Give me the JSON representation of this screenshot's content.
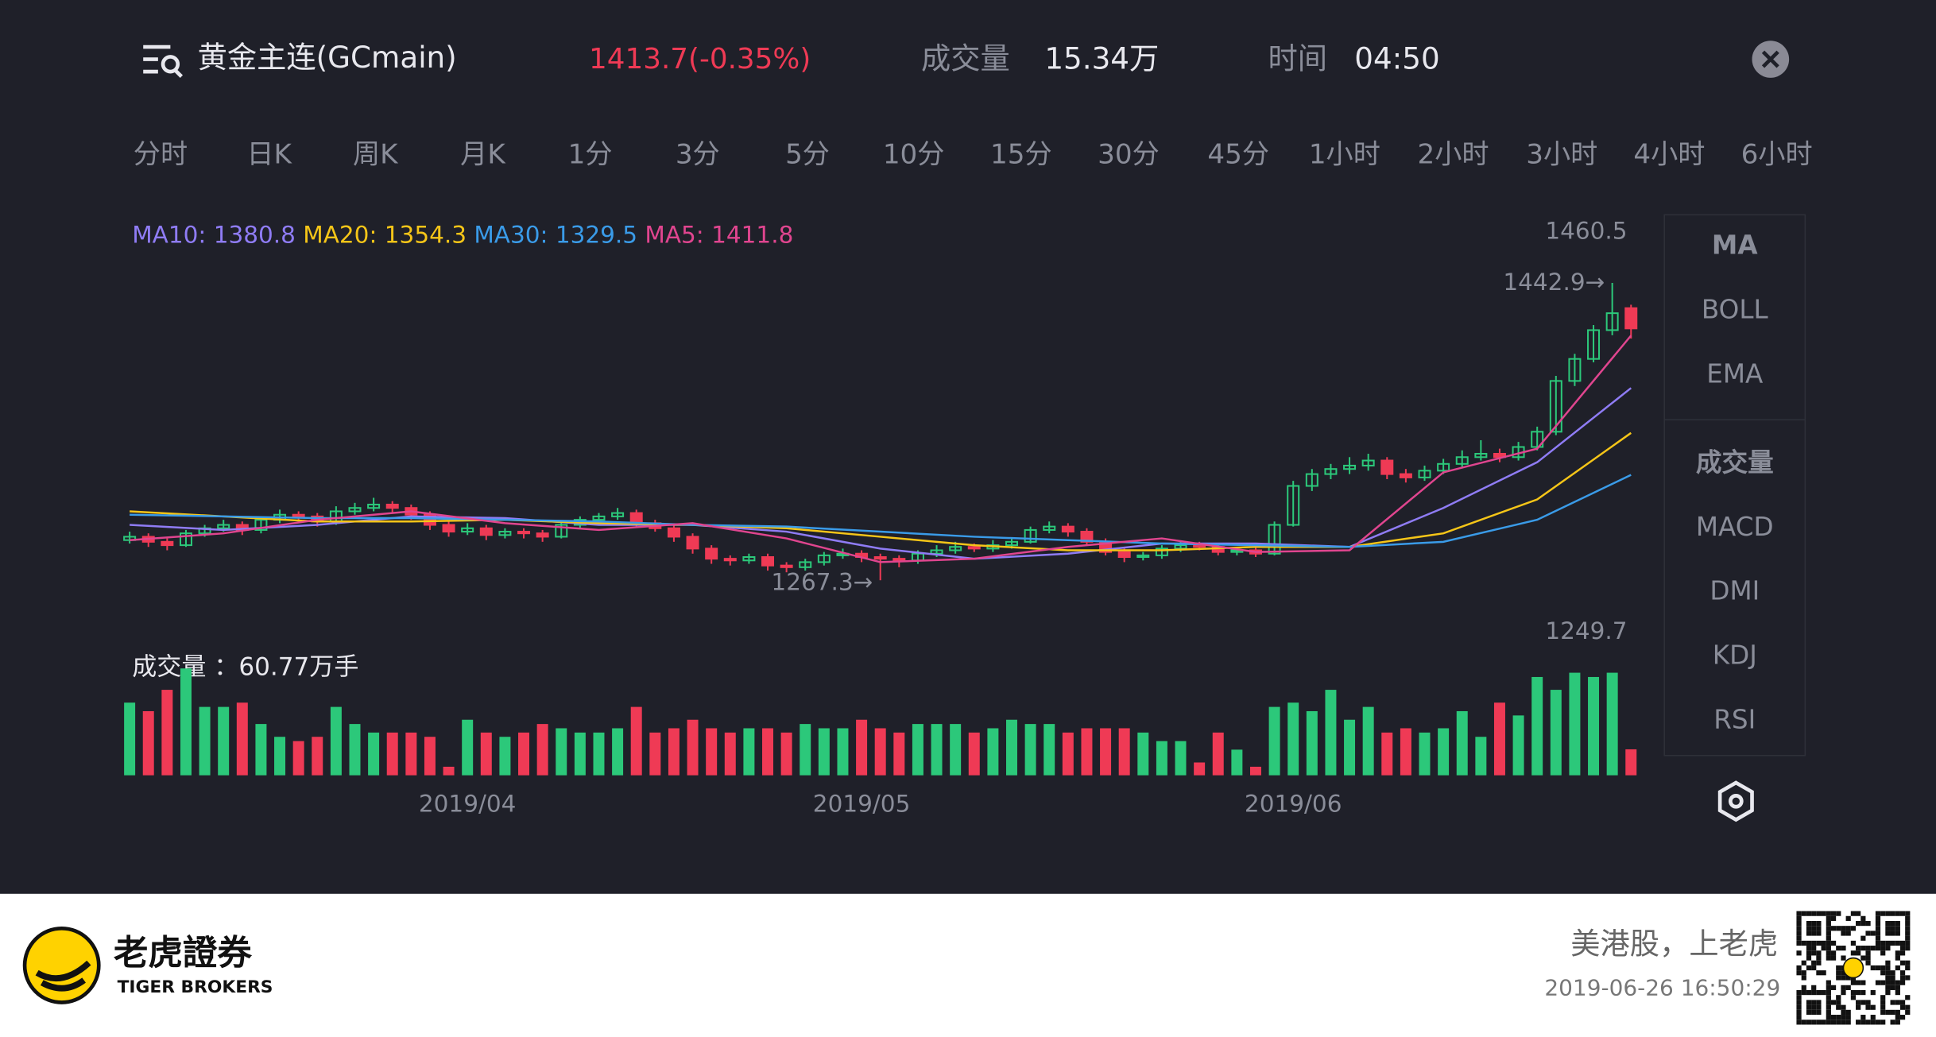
{
  "header": {
    "title": "黄金主连(GCmain)",
    "price": "1413.7(-0.35%)",
    "volume_label": "成交量",
    "volume": "15.34万",
    "time_label": "时间",
    "time": "04:50"
  },
  "tabs": {
    "items": [
      "分时",
      "日K",
      "周K",
      "月K",
      "1分",
      "3分",
      "5分",
      "10分",
      "15分",
      "30分",
      "45分",
      "1小时",
      "2小时",
      "3小时",
      "4小时",
      "6小时"
    ],
    "active": 1
  },
  "side_menu": {
    "items": [
      "MA",
      "BOLL",
      "EMA",
      "成交量",
      "MACD",
      "DMI",
      "KDJ",
      "RSI"
    ],
    "active": [
      0,
      3
    ]
  },
  "chart_data": {
    "type": "candlestick",
    "ylim": [
      1241.8,
      1460.5
    ],
    "yticks": [
      1460.5
    ],
    "xlim": [
      0,
      80
    ],
    "xticks": [
      {
        "value": 18,
        "label": "2019/04"
      },
      {
        "value": 39,
        "label": "2019/05"
      },
      {
        "value": 62,
        "label": "2019/06"
      }
    ],
    "up_color": "#2cc87a",
    "down_color": "#ef3a55",
    "ohlc": [
      [
        1291,
        1296,
        1289,
        1293
      ],
      [
        1293,
        1295,
        1287,
        1290
      ],
      [
        1290,
        1292,
        1285,
        1288
      ],
      [
        1288,
        1297,
        1287,
        1295
      ],
      [
        1295,
        1300,
        1293,
        1298
      ],
      [
        1298,
        1303,
        1296,
        1300
      ],
      [
        1300,
        1302,
        1294,
        1297
      ],
      [
        1297,
        1305,
        1295,
        1303
      ],
      [
        1303,
        1309,
        1301,
        1306
      ],
      [
        1306,
        1308,
        1302,
        1305
      ],
      [
        1305,
        1307,
        1299,
        1302
      ],
      [
        1302,
        1311,
        1300,
        1308
      ],
      [
        1308,
        1313,
        1306,
        1310
      ],
      [
        1310,
        1316,
        1308,
        1312
      ],
      [
        1312,
        1314,
        1307,
        1310
      ],
      [
        1310,
        1312,
        1303,
        1306
      ],
      [
        1306,
        1308,
        1297,
        1300
      ],
      [
        1300,
        1302,
        1293,
        1296
      ],
      [
        1296,
        1301,
        1294,
        1298
      ],
      [
        1298,
        1300,
        1291,
        1294
      ],
      [
        1294,
        1298,
        1292,
        1296
      ],
      [
        1296,
        1298,
        1292,
        1295
      ],
      [
        1295,
        1297,
        1290,
        1293
      ],
      [
        1293,
        1302,
        1292,
        1300
      ],
      [
        1300,
        1305,
        1298,
        1303
      ],
      [
        1303,
        1307,
        1301,
        1305
      ],
      [
        1305,
        1310,
        1303,
        1307
      ],
      [
        1307,
        1309,
        1299,
        1301
      ],
      [
        1301,
        1303,
        1296,
        1298
      ],
      [
        1298,
        1300,
        1290,
        1293
      ],
      [
        1293,
        1295,
        1283,
        1286
      ],
      [
        1286,
        1288,
        1277,
        1280
      ],
      [
        1280,
        1282,
        1276,
        1279
      ],
      [
        1279,
        1283,
        1277,
        1281
      ],
      [
        1281,
        1283,
        1273,
        1276
      ],
      [
        1276,
        1278,
        1272,
        1275
      ],
      [
        1275,
        1280,
        1273,
        1278
      ],
      [
        1278,
        1284,
        1276,
        1282
      ],
      [
        1282,
        1286,
        1280,
        1283
      ],
      [
        1283,
        1285,
        1278,
        1281
      ],
      [
        1281,
        1283,
        1267.3,
        1280
      ],
      [
        1280,
        1282,
        1275,
        1279
      ],
      [
        1279,
        1285,
        1277,
        1283
      ],
      [
        1283,
        1288,
        1281,
        1285
      ],
      [
        1285,
        1290,
        1283,
        1287
      ],
      [
        1287,
        1289,
        1284,
        1286
      ],
      [
        1286,
        1291,
        1284,
        1288
      ],
      [
        1288,
        1292,
        1286,
        1290
      ],
      [
        1290,
        1299,
        1289,
        1297
      ],
      [
        1297,
        1302,
        1295,
        1299
      ],
      [
        1299,
        1301,
        1293,
        1296
      ],
      [
        1296,
        1298,
        1288,
        1290
      ],
      [
        1290,
        1292,
        1282,
        1284
      ],
      [
        1284,
        1286,
        1278,
        1281
      ],
      [
        1281,
        1284,
        1279,
        1282
      ],
      [
        1282,
        1288,
        1280,
        1286
      ],
      [
        1286,
        1290,
        1284,
        1288
      ],
      [
        1288,
        1290,
        1285,
        1287
      ],
      [
        1287,
        1289,
        1282,
        1284
      ],
      [
        1284,
        1287,
        1282,
        1285
      ],
      [
        1285,
        1287,
        1281,
        1283
      ],
      [
        1283,
        1302,
        1282,
        1300
      ],
      [
        1300,
        1326,
        1299,
        1323
      ],
      [
        1323,
        1333,
        1320,
        1330
      ],
      [
        1330,
        1336,
        1327,
        1333
      ],
      [
        1333,
        1340,
        1330,
        1335
      ],
      [
        1335,
        1342,
        1332,
        1338
      ],
      [
        1338,
        1340,
        1327,
        1330
      ],
      [
        1330,
        1333,
        1325,
        1328
      ],
      [
        1328,
        1335,
        1326,
        1332
      ],
      [
        1332,
        1339,
        1330,
        1336
      ],
      [
        1336,
        1344,
        1334,
        1340
      ],
      [
        1340,
        1350,
        1338,
        1342
      ],
      [
        1342,
        1345,
        1337,
        1340
      ],
      [
        1340,
        1349,
        1338,
        1346
      ],
      [
        1346,
        1358,
        1344,
        1355
      ],
      [
        1355,
        1388,
        1353,
        1385
      ],
      [
        1385,
        1401,
        1382,
        1398
      ],
      [
        1398,
        1418,
        1396,
        1415
      ],
      [
        1415,
        1442.9,
        1412,
        1425
      ],
      [
        1428,
        1430,
        1410,
        1416
      ]
    ],
    "ma_x": [
      0,
      5,
      10,
      15,
      20,
      25,
      30,
      35,
      40,
      45,
      50,
      55,
      60,
      65,
      70,
      75,
      80
    ],
    "ma": [
      {
        "name": "MA10",
        "color": "#8f7cf5",
        "values": [
          1300,
          1297,
          1300,
          1305,
          1304,
          1300,
          1300,
          1296,
          1286,
          1280,
          1283,
          1289,
          1289,
          1287,
          1310,
          1337,
          1380.8
        ]
      },
      {
        "name": "MA20",
        "color": "#f5c518",
        "values": [
          1308,
          1305,
          1302,
          1302,
          1303,
          1301,
          1300,
          1298,
          1293,
          1288,
          1285,
          1285,
          1287,
          1287,
          1295,
          1315,
          1354.3
        ]
      },
      {
        "name": "MA30",
        "color": "#3a9be8",
        "values": [
          1306,
          1305,
          1304,
          1304,
          1303,
          1302,
          1300,
          1299,
          1296,
          1293,
          1291,
          1289,
          1288,
          1287,
          1290,
          1303,
          1329.5
        ]
      },
      {
        "name": "MA5",
        "color": "#e0458f",
        "values": [
          1291,
          1295,
          1303,
          1308,
          1301,
          1297,
          1301,
          1292,
          1278,
          1280,
          1287,
          1292,
          1284,
          1285,
          1331,
          1345,
          1411.8
        ]
      }
    ],
    "volume_title": "成交量 ",
    "volume_unit": "万手",
    "volume_top": "1249.7",
    "vlim": [
      0,
      260
    ],
    "volume": [
      170,
      150,
      200,
      250,
      160,
      160,
      170,
      120,
      90,
      80,
      90,
      160,
      120,
      100,
      100,
      100,
      90,
      20,
      130,
      100,
      90,
      100,
      120,
      110,
      100,
      100,
      110,
      160,
      100,
      110,
      130,
      110,
      100,
      110,
      110,
      100,
      120,
      110,
      110,
      130,
      110,
      100,
      120,
      120,
      120,
      100,
      110,
      130,
      120,
      120,
      100,
      110,
      110,
      110,
      100,
      80,
      80,
      30,
      100,
      60,
      20,
      160,
      170,
      150,
      200,
      130,
      160,
      100,
      110,
      100,
      110,
      150,
      90,
      170,
      140,
      230,
      200,
      240,
      230,
      240,
      60.77
    ]
  },
  "footer": {
    "brand": "老虎證券",
    "brand_en": "TIGER BROKERS",
    "slogan": "美港股，上老虎",
    "timestamp": "2019-06-26 16:50:29"
  }
}
